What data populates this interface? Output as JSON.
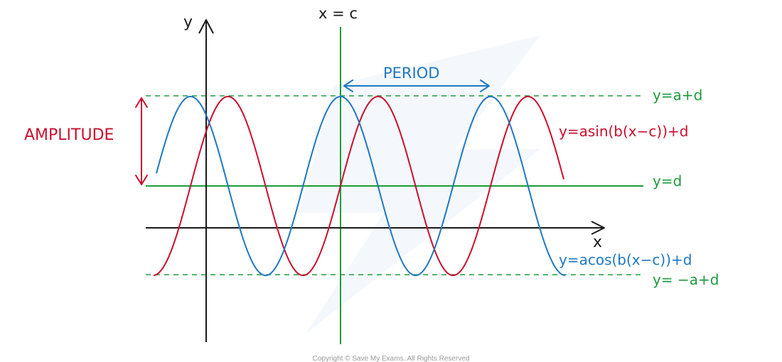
{
  "axes": {
    "y_label": "y",
    "x_label": "x"
  },
  "vertical_line": {
    "label": "x = c"
  },
  "period": {
    "label": "PERIOD"
  },
  "amplitude": {
    "label": "AMPLITUDE"
  },
  "lines": {
    "max": "y=a+d",
    "mid": "y=d",
    "min": "y= −a+d"
  },
  "curves": {
    "sine": {
      "label": "y=asin(b(x−c))+d"
    },
    "cosine": {
      "label": "y=acos(b(x−c))+d"
    }
  },
  "colors": {
    "axis": "#1a1a1a",
    "green": "#1e9b3c",
    "blue": "#1f78c1",
    "red": "#c8102e"
  },
  "footer": {
    "copyright": "Copyright © Save My Exams. All Rights Reserved"
  }
}
